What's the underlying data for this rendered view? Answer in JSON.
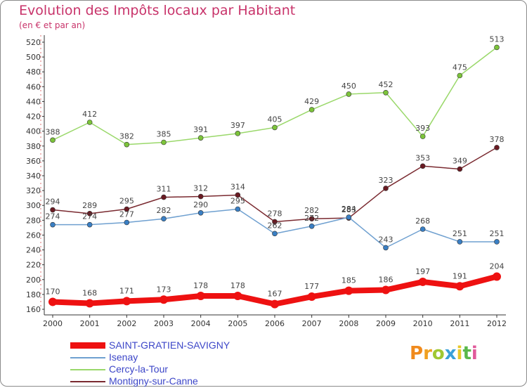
{
  "title": "Evolution des Impôts locaux par Habitant",
  "subtitle": "(en € et par an)",
  "logo_text": "Proxiti",
  "chart_data": {
    "type": "line",
    "x": [
      "2000",
      "2001",
      "2002",
      "2003",
      "2004",
      "2005",
      "2006",
      "2007",
      "2008",
      "2009",
      "2010",
      "2011",
      "2012"
    ],
    "ylim": [
      160,
      520
    ],
    "yticks": [
      160,
      180,
      200,
      220,
      240,
      260,
      280,
      300,
      320,
      340,
      360,
      380,
      400,
      420,
      440,
      460,
      480,
      500,
      520
    ],
    "grid": false,
    "legend_placement": "bottom-left",
    "series": [
      {
        "name": "SAINT-GRATIEN-SAVIGNY",
        "color": "#ee1111",
        "thick": true,
        "values": [
          170,
          168,
          171,
          173,
          178,
          178,
          167,
          177,
          185,
          186,
          197,
          191,
          204
        ]
      },
      {
        "name": "Isenay",
        "color": "#6fa0d0",
        "point": "#3a7fc4",
        "thick": false,
        "values": [
          274,
          274,
          277,
          282,
          290,
          295,
          262,
          272,
          284,
          243,
          268,
          251,
          251
        ]
      },
      {
        "name": "Cercy-la-Tour",
        "color": "#9ad86a",
        "point": "#7cc43a",
        "thick": false,
        "values": [
          388,
          412,
          382,
          385,
          391,
          397,
          405,
          429,
          450,
          452,
          393,
          475,
          513
        ]
      },
      {
        "name": "Montigny-sur-Canne",
        "color": "#7a2a30",
        "point": "#6a1a22",
        "thick": false,
        "values": [
          294,
          289,
          295,
          311,
          312,
          314,
          278,
          282,
          283,
          323,
          353,
          349,
          378
        ]
      }
    ]
  }
}
